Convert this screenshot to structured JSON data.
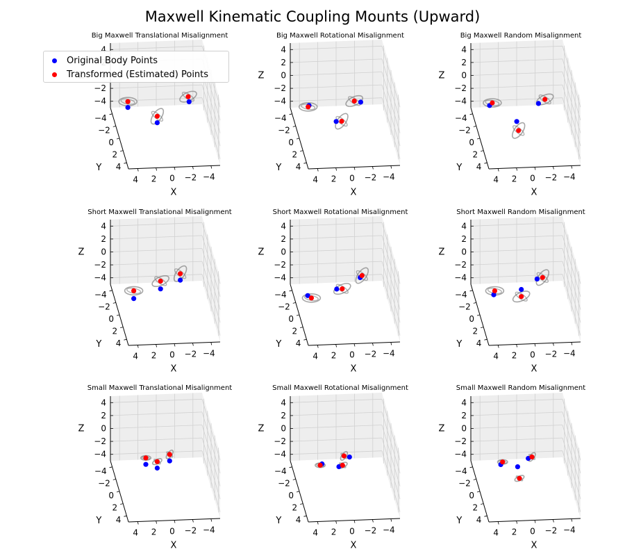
{
  "title": "Maxwell Kinematic Coupling Mounts (Upward)",
  "legend": [
    {
      "label": "Original Body Points",
      "color": "#0000ff"
    },
    {
      "label": "Transformed (Estimated) Points",
      "color": "#ff0000"
    }
  ],
  "colors": {
    "original": "#0000ff",
    "transformed": "#ff0000",
    "ellipse": "#808080",
    "grid": "#d0d0d0",
    "pane": "#f2f2f2"
  },
  "axes_common": {
    "xlabel": "X",
    "ylabel": "Y",
    "zlabel": "Z",
    "x_ticks": [
      "4",
      "2",
      "0",
      "−2",
      "−4"
    ],
    "y_ticks": [
      "−4",
      "−2",
      "0",
      "2",
      "4"
    ],
    "z_ticks": [
      "4",
      "2",
      "0",
      "−2",
      "−4"
    ]
  },
  "chart_data": [
    {
      "type": "scatter3d",
      "title": "Big Maxwell Translational Misalignment",
      "original": [
        [
          4.2,
          0.6,
          0.3
        ],
        [
          -2.4,
          1.0,
          1.2
        ],
        [
          0.8,
          -0.4,
          -3.2
        ]
      ],
      "transformed": [
        [
          4.2,
          0.6,
          1.2
        ],
        [
          -2.3,
          1.0,
          2.0
        ],
        [
          0.8,
          -0.4,
          -2.2
        ]
      ]
    },
    {
      "type": "scatter3d",
      "title": "Big Maxwell Rotational Misalignment",
      "original": [
        [
          4.0,
          0.3,
          0.3
        ],
        [
          -1.5,
          1.0,
          1.2
        ],
        [
          0.9,
          -0.4,
          -3.0
        ]
      ],
      "transformed": [
        [
          4.1,
          0.3,
          0.1
        ],
        [
          -0.8,
          1.0,
          1.4
        ],
        [
          0.3,
          -0.4,
          -3.0
        ]
      ]
    },
    {
      "type": "scatter3d",
      "title": "Big Maxwell Random Misalignment",
      "original": [
        [
          4.0,
          0.3,
          0.3
        ],
        [
          -1.2,
          1.0,
          1.0
        ],
        [
          0.9,
          -0.4,
          -3.0
        ]
      ],
      "transformed": [
        [
          3.7,
          0.3,
          0.7
        ],
        [
          -1.9,
          1.0,
          1.6
        ],
        [
          0.7,
          -0.4,
          -4.4
        ]
      ]
    },
    {
      "type": "scatter3d",
      "title": "Short Maxwell Translational Misalignment",
      "original": [
        [
          3.6,
          0.8,
          -1.8
        ],
        [
          0.4,
          -0.6,
          -1.8
        ],
        [
          -1.6,
          0.2,
          0.2
        ]
      ],
      "transformed": [
        [
          3.6,
          0.8,
          -0.6
        ],
        [
          0.4,
          -0.6,
          -0.6
        ],
        [
          -1.6,
          0.2,
          1.2
        ]
      ]
    },
    {
      "type": "scatter3d",
      "title": "Short Maxwell Rotational Misalignment",
      "original": [
        [
          4.2,
          0.6,
          -1.5
        ],
        [
          0.8,
          -0.6,
          -1.8
        ],
        [
          -1.6,
          0.2,
          0.6
        ]
      ],
      "transformed": [
        [
          3.8,
          0.6,
          -1.9
        ],
        [
          0.2,
          -0.6,
          -1.8
        ],
        [
          -1.8,
          0.2,
          0.9
        ]
      ]
    },
    {
      "type": "scatter3d",
      "title": "Short Maxwell Random Misalignment",
      "original": [
        [
          3.6,
          0.6,
          -1.4
        ],
        [
          0.4,
          -0.4,
          -1.7
        ],
        [
          -1.2,
          0.2,
          0.4
        ]
      ],
      "transformed": [
        [
          3.5,
          0.6,
          -0.8
        ],
        [
          0.4,
          -0.4,
          -2.8
        ],
        [
          -1.8,
          0.2,
          0.6
        ]
      ]
    },
    {
      "type": "scatter3d",
      "title": "Small Maxwell Translational Misalignment",
      "original": [
        [
          2.2,
          0.4,
          -0.6
        ],
        [
          0.8,
          -0.4,
          -2.0
        ],
        [
          -0.4,
          0.4,
          -0.2
        ]
      ],
      "transformed": [
        [
          2.2,
          0.4,
          0.4
        ],
        [
          0.8,
          -0.4,
          -1.0
        ],
        [
          -0.4,
          0.4,
          0.8
        ]
      ]
    },
    {
      "type": "scatter3d",
      "title": "Small Maxwell Rotational Misalignment",
      "original": [
        [
          2.6,
          0.4,
          -0.5
        ],
        [
          0.6,
          -0.4,
          -1.8
        ],
        [
          -0.4,
          0.4,
          0.4
        ]
      ],
      "transformed": [
        [
          2.8,
          0.4,
          -0.7
        ],
        [
          0.2,
          -0.4,
          -1.6
        ],
        [
          0.2,
          0.4,
          0.6
        ]
      ]
    },
    {
      "type": "scatter3d",
      "title": "Small Maxwell Random Misalignment",
      "original": [
        [
          2.8,
          0.4,
          -0.6
        ],
        [
          0.8,
          -0.4,
          -1.8
        ],
        [
          -0.2,
          0.4,
          0.2
        ]
      ],
      "transformed": [
        [
          2.6,
          0.4,
          -0.2
        ],
        [
          0.6,
          -0.4,
          -3.6
        ],
        [
          -0.6,
          0.4,
          0.4
        ]
      ]
    }
  ]
}
